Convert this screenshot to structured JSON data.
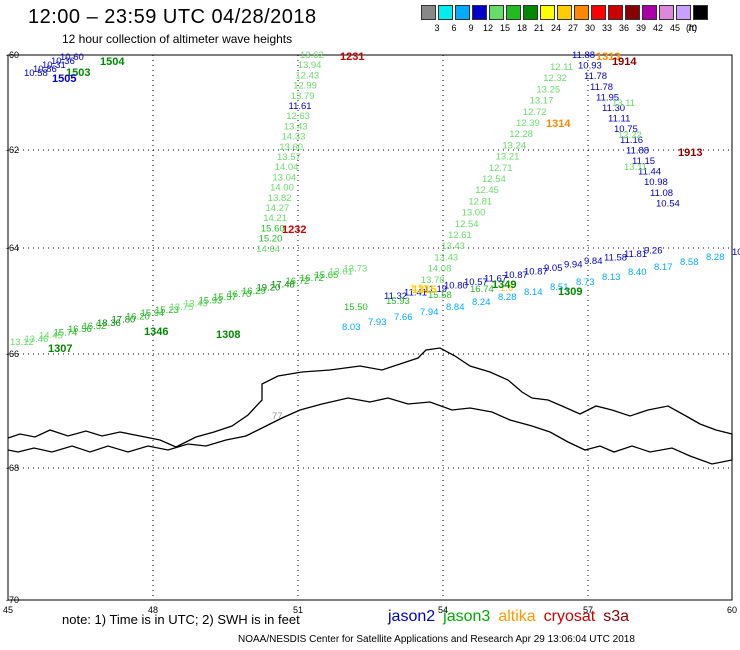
{
  "header": {
    "title": "12:00 – 23:59 UTC 04/28/2018",
    "subtitle": "12 hour collection of altimeter wave heights"
  },
  "color_scale": {
    "unit": "(ft)",
    "bins": [
      {
        "color": "#888888",
        "label": "3"
      },
      {
        "color": "#00eeee",
        "label": "6"
      },
      {
        "color": "#00aaff",
        "label": "9"
      },
      {
        "color": "#0000cc",
        "label": "12"
      },
      {
        "color": "#66dd66",
        "label": "15"
      },
      {
        "color": "#22bb22",
        "label": "18"
      },
      {
        "color": "#008800",
        "label": "21"
      },
      {
        "color": "#ffff00",
        "label": "24"
      },
      {
        "color": "#ffcc00",
        "label": "27"
      },
      {
        "color": "#ff8800",
        "label": "30"
      },
      {
        "color": "#ff0000",
        "label": "33"
      },
      {
        "color": "#cc0000",
        "label": "36"
      },
      {
        "color": "#880000",
        "label": "39"
      },
      {
        "color": "#aa00aa",
        "label": "42"
      },
      {
        "color": "#dd88dd",
        "label": "45"
      },
      {
        "color": "#c8a0ff",
        "label": "70"
      },
      {
        "color": "#000000",
        "label": ""
      }
    ]
  },
  "axes": {
    "lat_labels": [
      "-60",
      "-62",
      "-64",
      "-66",
      "-68",
      "-70"
    ],
    "lon_labels": [
      "45",
      "48",
      "51",
      "54",
      "57",
      "60"
    ]
  },
  "tracks": [
    {
      "satellite": "jason2",
      "points": [
        {
          "t": "10.60",
          "c": "#0000cc"
        },
        {
          "t": "10.36",
          "c": "#0000cc"
        },
        {
          "t": "10.31",
          "c": "#0000cc"
        },
        {
          "t": "10.86",
          "c": "#0000cc"
        },
        {
          "t": "10.58",
          "c": "#0000cc"
        }
      ]
    },
    {
      "satellite": "jason2",
      "points": [
        {
          "t": "11.88",
          "c": "#0000cc"
        },
        {
          "t": "10.93",
          "c": "#0000cc"
        },
        {
          "t": "11.78",
          "c": "#0000cc"
        },
        {
          "t": "11.78",
          "c": "#0000cc"
        },
        {
          "t": "11.95",
          "c": "#0000cc"
        },
        {
          "t": "11.30",
          "c": "#0000cc"
        },
        {
          "t": "11.11",
          "c": "#0000cc"
        },
        {
          "t": "10.75",
          "c": "#0000cc"
        },
        {
          "t": "11.16",
          "c": "#0000cc"
        },
        {
          "t": "11.88",
          "c": "#0000cc"
        },
        {
          "t": "11.15",
          "c": "#0000cc"
        },
        {
          "t": "11.44",
          "c": "#0000cc"
        },
        {
          "t": "10.98",
          "c": "#0000cc"
        },
        {
          "t": "11.08",
          "c": "#0000cc"
        },
        {
          "t": "10.54",
          "c": "#0000cc"
        }
      ]
    },
    {
      "satellite": "jason3",
      "points": [
        {
          "t": "13.62",
          "c": "#66dd66"
        },
        {
          "t": "13.94",
          "c": "#66dd66"
        },
        {
          "t": "12.43",
          "c": "#66dd66"
        },
        {
          "t": "12.99",
          "c": "#66dd66"
        },
        {
          "t": "13.79",
          "c": "#66dd66"
        },
        {
          "t": "11.61",
          "c": "#0000cc"
        },
        {
          "t": "12.63",
          "c": "#66dd66"
        },
        {
          "t": "13.43",
          "c": "#66dd66"
        },
        {
          "t": "14.33",
          "c": "#66dd66"
        },
        {
          "t": "13.60",
          "c": "#66dd66"
        },
        {
          "t": "13.57",
          "c": "#66dd66"
        },
        {
          "t": "14.04",
          "c": "#66dd66"
        },
        {
          "t": "13.04",
          "c": "#66dd66"
        },
        {
          "t": "14.00",
          "c": "#66dd66"
        },
        {
          "t": "13.82",
          "c": "#66dd66"
        },
        {
          "t": "14.27",
          "c": "#66dd66"
        },
        {
          "t": "14.21",
          "c": "#66dd66"
        },
        {
          "t": "15.60",
          "c": "#22bb22"
        },
        {
          "t": "15.20",
          "c": "#22bb22"
        },
        {
          "t": "14.64",
          "c": "#66dd66"
        }
      ]
    },
    {
      "satellite": "jason3",
      "points": [
        {
          "t": "12.11",
          "c": "#66dd66"
        },
        {
          "t": "12.32",
          "c": "#66dd66"
        },
        {
          "t": "13.25",
          "c": "#66dd66"
        },
        {
          "t": "13.17",
          "c": "#66dd66"
        },
        {
          "t": "12.72",
          "c": "#66dd66"
        },
        {
          "t": "12.39",
          "c": "#66dd66"
        },
        {
          "t": "12.28",
          "c": "#66dd66"
        },
        {
          "t": "13.24",
          "c": "#66dd66"
        },
        {
          "t": "13.21",
          "c": "#66dd66"
        },
        {
          "t": "12.71",
          "c": "#66dd66"
        },
        {
          "t": "12.54",
          "c": "#66dd66"
        },
        {
          "t": "12.45",
          "c": "#66dd66"
        },
        {
          "t": "12.81",
          "c": "#66dd66"
        },
        {
          "t": "13.00",
          "c": "#66dd66"
        },
        {
          "t": "12.54",
          "c": "#66dd66"
        },
        {
          "t": "12.61",
          "c": "#66dd66"
        },
        {
          "t": "13.43",
          "c": "#66dd66"
        },
        {
          "t": "13.43",
          "c": "#66dd66"
        },
        {
          "t": "14.08",
          "c": "#66dd66"
        },
        {
          "t": "13.78",
          "c": "#66dd66"
        }
      ]
    },
    {
      "satellite": "jason3",
      "points": [
        {
          "t": "13.11",
          "c": "#66dd66"
        },
        {
          "t": "12.22",
          "c": "#66dd66"
        },
        {
          "t": "13.11",
          "c": "#66dd66"
        }
      ]
    },
    {
      "satellite": "jason2",
      "points": [
        {
          "t": "11.32",
          "c": "#0000cc"
        },
        {
          "t": "11.41",
          "c": "#0000cc"
        },
        {
          "t": "11.19",
          "c": "#0000cc"
        },
        {
          "t": "10.80",
          "c": "#0000cc"
        },
        {
          "t": "10.57",
          "c": "#0000cc"
        },
        {
          "t": "11.67",
          "c": "#0000cc"
        },
        {
          "t": "10.87",
          "c": "#0000cc"
        },
        {
          "t": "10.87",
          "c": "#0000cc"
        },
        {
          "t": "9.05",
          "c": "#0000cc"
        },
        {
          "t": "9.94",
          "c": "#0000cc"
        },
        {
          "t": "9.84",
          "c": "#0000cc"
        },
        {
          "t": "11.58",
          "c": "#0000cc"
        },
        {
          "t": "11.81",
          "c": "#0000cc"
        },
        {
          "t": "9.26",
          "c": "#0000cc"
        }
      ]
    },
    {
      "satellite": "jason3",
      "points": [
        {
          "t": "13.12",
          "c": "#66dd66"
        },
        {
          "t": "13.46",
          "c": "#66dd66"
        },
        {
          "t": "14.45",
          "c": "#66dd66"
        },
        {
          "t": "15.74",
          "c": "#22bb22"
        },
        {
          "t": "16.56",
          "c": "#22bb22"
        },
        {
          "t": "16.52",
          "c": "#22bb22"
        },
        {
          "t": "18.36",
          "c": "#008800"
        },
        {
          "t": "17.80",
          "c": "#008800"
        },
        {
          "t": "16.20",
          "c": "#22bb22"
        },
        {
          "t": "15.94",
          "c": "#22bb22"
        },
        {
          "t": "15.23",
          "c": "#22bb22"
        },
        {
          "t": "13.75",
          "c": "#66dd66"
        },
        {
          "t": "13.43",
          "c": "#66dd66"
        },
        {
          "t": "15.93",
          "c": "#22bb22"
        },
        {
          "t": "15.57",
          "c": "#22bb22"
        },
        {
          "t": "16.70",
          "c": "#22bb22"
        },
        {
          "t": "16.29",
          "c": "#22bb22"
        },
        {
          "t": "19.20",
          "c": "#008800"
        },
        {
          "t": "17.48",
          "c": "#008800"
        },
        {
          "t": "16.72",
          "c": "#22bb22"
        },
        {
          "t": "16.72",
          "c": "#22bb22"
        },
        {
          "t": "15.65",
          "c": "#22bb22"
        },
        {
          "t": "13.61",
          "c": "#66dd66"
        },
        {
          "t": "13.73",
          "c": "#66dd66"
        }
      ]
    },
    {
      "satellite": "jason3",
      "points": [
        {
          "t": "16.74",
          "c": "#22bb22"
        },
        {
          "t": "15.58",
          "c": "#22bb22"
        },
        {
          "t": "15.93",
          "c": "#22bb22"
        },
        {
          "t": "15.50",
          "c": "#22bb22"
        }
      ]
    },
    {
      "satellite": "cryosat",
      "points": [
        {
          "t": "8.03",
          "c": "#00aaff"
        },
        {
          "t": "7.93",
          "c": "#00aaff"
        },
        {
          "t": "7.66",
          "c": "#00aaff"
        },
        {
          "t": "7.94",
          "c": "#00aaff"
        },
        {
          "t": "8.84",
          "c": "#00aaff"
        },
        {
          "t": "8.24",
          "c": "#00aaff"
        },
        {
          "t": "8.28",
          "c": "#00aaff"
        },
        {
          "t": "8.14",
          "c": "#00aaff"
        },
        {
          "t": "8.51",
          "c": "#00aaff"
        },
        {
          "t": "8.73",
          "c": "#00aaff"
        },
        {
          "t": "8.13",
          "c": "#00aaff"
        },
        {
          "t": "8.40",
          "c": "#00aaff"
        },
        {
          "t": "8.17",
          "c": "#00aaff"
        },
        {
          "t": "8.58",
          "c": "#00aaff"
        },
        {
          "t": "8.28",
          "c": "#00aaff"
        },
        {
          "t": "10.",
          "c": "#0000cc"
        }
      ]
    },
    {
      "satellite": "altika",
      "points": [
        {
          "t": "1.31",
          "c": "#ffcc00"
        },
        {
          "t": "1.6",
          "c": "#ffcc00"
        }
      ]
    }
  ],
  "time_labels": [
    {
      "t": "1231",
      "c": "#cc0000"
    },
    {
      "t": "1232",
      "c": "#cc0000"
    },
    {
      "t": "1313",
      "c": "#ff8800"
    },
    {
      "t": "1914",
      "c": "#880000"
    },
    {
      "t": "1314",
      "c": "#ff8800"
    },
    {
      "t": "1913",
      "c": "#880000"
    },
    {
      "t": "1504",
      "c": "#008800"
    },
    {
      "t": "1503",
      "c": "#008800"
    },
    {
      "t": "1505",
      "c": "#0000cc"
    },
    {
      "t": "1307",
      "c": "#008800"
    },
    {
      "t": "1346",
      "c": "#008800"
    },
    {
      "t": "1308",
      "c": "#008800"
    },
    {
      "t": "1309",
      "c": "#008800"
    },
    {
      "t": "1349",
      "c": "#008800"
    },
    {
      "t": "1315",
      "c": "#ffcc00"
    }
  ],
  "land_label": "77",
  "note": "note:  1) Time is in UTC;  2) SWH is in feet",
  "satellites": [
    {
      "name": "jason2",
      "color": "#0000cc"
    },
    {
      "name": "jason3",
      "color": "#00aa00"
    },
    {
      "name": "altika",
      "color": "#ff9900"
    },
    {
      "name": "cryosat",
      "color": "#cc0000"
    },
    {
      "name": "s3a",
      "color": "#880000"
    }
  ],
  "credit": "NOAA/NESDIS Center for Satellite Applications and Research    Apr 29 13:06:04 UTC 2018"
}
